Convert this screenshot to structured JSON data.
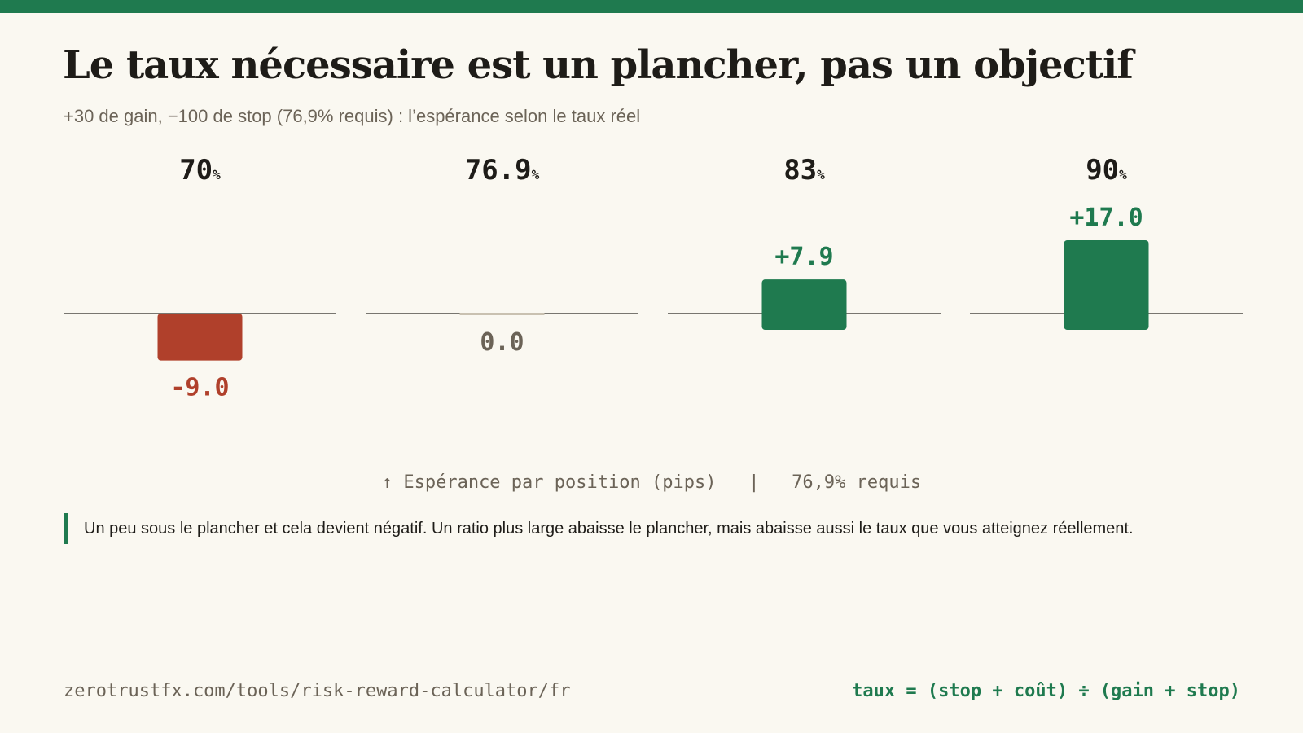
{
  "header": {
    "title": "Le taux nécessaire est un plancher, pas un objectif",
    "subtitle": "+30 de gain, −100 de stop (76,9% requis) : l’espérance selon le taux réel"
  },
  "chart_data": {
    "type": "bar",
    "categories": [
      "70",
      "76.9",
      "83",
      "90"
    ],
    "category_unit": "%",
    "values": [
      -9.0,
      0.0,
      7.9,
      17.0
    ],
    "value_labels": [
      "-9.0",
      "0.0",
      "+7.9",
      "+17.0"
    ],
    "caption": "↑ Espérance par position (pips)   |   76,9% requis",
    "colors": {
      "negative": "#b0402b",
      "zero": "#6b6357",
      "positive": "#1f7a4f",
      "baseline": "#2a2823",
      "category_text": "#1e1c18"
    }
  },
  "note": "Un peu sous le plancher et cela devient négatif. Un ratio plus large abaisse le plancher, mais abaisse aussi le taux que vous atteignez réellement.",
  "footer": {
    "url": "zerotrustfx.com/tools/risk-reward-calculator/fr",
    "formula": "taux = (stop + coût) ÷ (gain + stop)"
  }
}
